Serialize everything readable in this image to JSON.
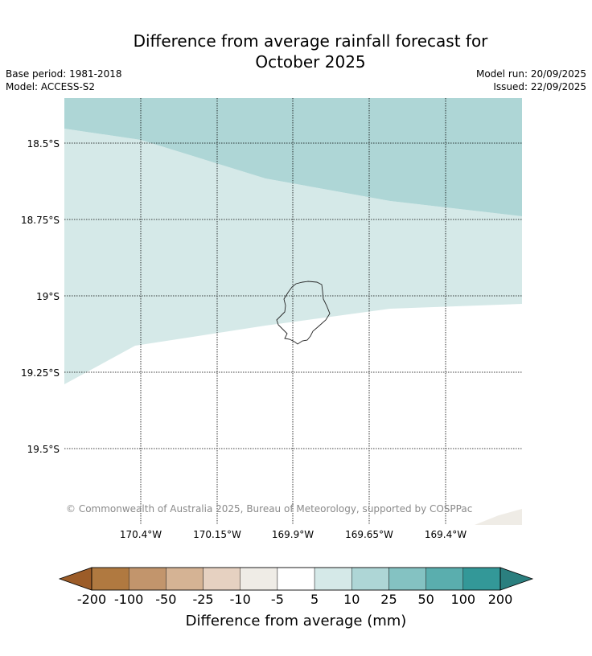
{
  "title": "Difference from average rainfall forecast for",
  "subtitle": "October 2025",
  "base_period": "Base period: 1981-2018",
  "model": "Model: ACCESS-S2",
  "model_run": "Model run: 20/09/2025",
  "issued": "Issued: 22/09/2025",
  "copyright": "© Commonwealth of Australia 2025, Bureau of Meteorology, supported by COSPPac",
  "lat_labels": [
    "18.5°S",
    "18.75°S",
    "19°S",
    "19.25°S",
    "19.5°S"
  ],
  "lon_labels": [
    "170.4°W",
    "170.15°W",
    "169.9°W",
    "169.65°W",
    "169.4°W"
  ],
  "colorbar": {
    "label": "Difference from average (mm)",
    "ticks": [
      "-200",
      "-100",
      "-50",
      "-25",
      "-10",
      "-5",
      "5",
      "10",
      "25",
      "50",
      "100",
      "200"
    ],
    "colors": [
      "#9c5c28",
      "#b07940",
      "#c2956c",
      "#d5b394",
      "#e6d1c1",
      "#efece6",
      "#ffffff",
      "#d5e9e8",
      "#aed6d6",
      "#84c2c2",
      "#5aaeae",
      "#339898",
      "#2b7f7f"
    ]
  },
  "map_colors": {
    "band_10_25": "#aed6d6",
    "band_5_10": "#d5e9e8",
    "band_neg": "#efece6",
    "band_none": "#ffffff"
  }
}
